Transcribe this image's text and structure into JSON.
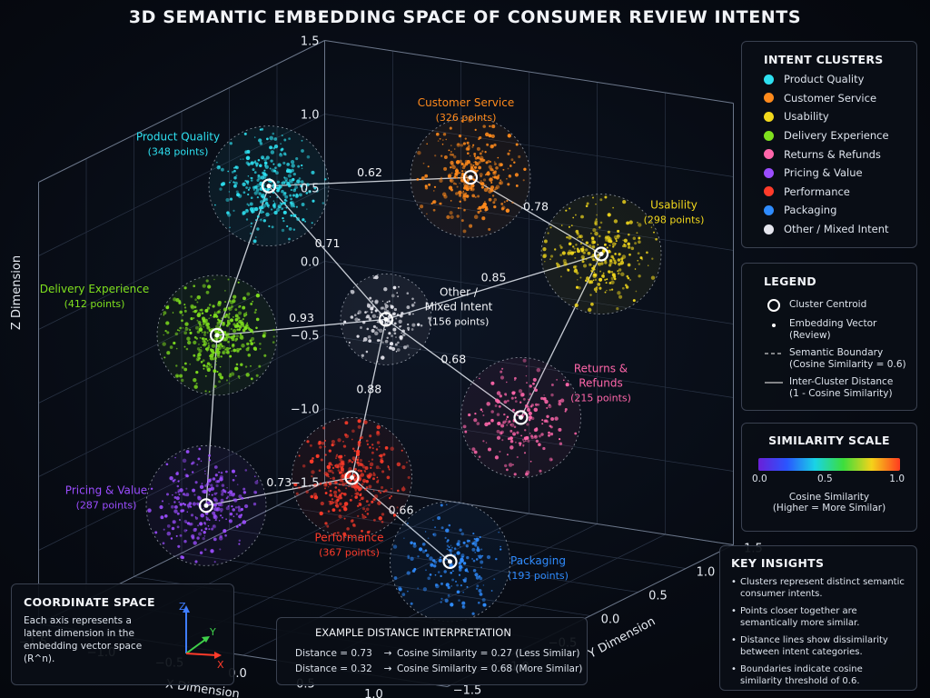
{
  "title": "3D SEMANTIC EMBEDDING SPACE OF CONSUMER REVIEW INTENTS",
  "chart_data": {
    "type": "scatter",
    "projection": "3d",
    "axes": {
      "x": {
        "label": "X Dimension",
        "ticks": [
          "−1.5",
          "−1.0",
          "−0.5",
          "0.0",
          "0.5",
          "1.0",
          "1.5"
        ],
        "range": [
          -1.5,
          1.5
        ]
      },
      "y": {
        "label": "Y Dimension",
        "ticks": [
          "−1.5",
          "−1.0",
          "−0.5",
          "0.0",
          "0.5",
          "1.0",
          "1.5"
        ],
        "range": [
          -1.5,
          1.5
        ]
      },
      "z": {
        "label": "Z Dimension",
        "ticks": [
          "1.5",
          "1.0",
          "0.5",
          "0.0",
          "−0.5",
          "−1.0",
          "−1.5"
        ],
        "range": [
          -1.5,
          1.5
        ]
      }
    },
    "clusters": [
      {
        "id": "pq",
        "name": "Product Quality",
        "label": "Product Quality",
        "count_label": "(348 points)",
        "points": 348,
        "color": "#2ee0f0",
        "x": -1.0,
        "y": 0.2,
        "z": 1.0
      },
      {
        "id": "cs",
        "name": "Customer Service",
        "label": "Customer Service",
        "count_label": "(326 points)",
        "points": 326,
        "color": "#ff8a1c",
        "x": 0.2,
        "y": 0.6,
        "z": 1.1
      },
      {
        "id": "us",
        "name": "Usability",
        "label": "Usability",
        "count_label": "(298 points)",
        "points": 298,
        "color": "#f2d81c",
        "x": 1.3,
        "y": 0.4,
        "z": 0.8
      },
      {
        "id": "de",
        "name": "Delivery Experience",
        "label": "Delivery Experience",
        "count_label": "(412 points)",
        "points": 412,
        "color": "#7fe01e",
        "x": -1.1,
        "y": -0.2,
        "z": 0.1
      },
      {
        "id": "om",
        "name": "Other / Mixed Intent",
        "label_lines": [
          "Other /",
          "Mixed Intent"
        ],
        "count_label": "(156 points)",
        "points": 156,
        "color": "#e6e6ee",
        "x": 0.0,
        "y": 0.0,
        "z": 0.3
      },
      {
        "id": "rr",
        "name": "Returns & Refunds",
        "label_lines": [
          "Returns &",
          "Refunds"
        ],
        "count_label": "(215 points)",
        "points": 215,
        "color": "#ff66aa",
        "x": 1.2,
        "y": -0.3,
        "z": -0.1
      },
      {
        "id": "pv",
        "name": "Pricing & Value",
        "label": "Pricing & Value",
        "count_label": "(287 points)",
        "points": 287,
        "color": "#9b4dff",
        "x": -0.9,
        "y": -0.6,
        "z": -0.9
      },
      {
        "id": "pf",
        "name": "Performance",
        "label": "Performance",
        "count_label": "(367 points)",
        "points": 367,
        "color": "#ff3b2a",
        "x": 0.1,
        "y": -0.5,
        "z": -0.6
      },
      {
        "id": "pk",
        "name": "Packaging",
        "label": "Packaging",
        "count_label": "(193 points)",
        "points": 193,
        "color": "#2f8cff",
        "x": 1.1,
        "y": -0.9,
        "z": -0.9
      }
    ],
    "distances": [
      {
        "from": "pq",
        "to": "cs",
        "value": "0.62"
      },
      {
        "from": "cs",
        "to": "us",
        "value": "0.78"
      },
      {
        "from": "pq",
        "to": "om",
        "value": "0.71"
      },
      {
        "from": "om",
        "to": "us",
        "value": "0.85"
      },
      {
        "from": "de",
        "to": "om",
        "value": "0.93"
      },
      {
        "from": "om",
        "to": "rr",
        "value": "0.68"
      },
      {
        "from": "om",
        "to": "pf",
        "value": "0.88"
      },
      {
        "from": "pv",
        "to": "pf",
        "value": "0.73"
      },
      {
        "from": "pf",
        "to": "pk",
        "value": "0.66"
      },
      {
        "from": "pq",
        "to": "de",
        "value": ""
      },
      {
        "from": "de",
        "to": "pv",
        "value": ""
      },
      {
        "from": "us",
        "to": "rr",
        "value": ""
      }
    ],
    "boundary_threshold": 0.6
  },
  "intent_clusters": {
    "title": "INTENT CLUSTERS",
    "items": [
      {
        "label": "Product Quality",
        "color": "#2ee0f0"
      },
      {
        "label": "Customer Service",
        "color": "#ff8a1c"
      },
      {
        "label": "Usability",
        "color": "#f2d81c"
      },
      {
        "label": "Delivery Experience",
        "color": "#7fe01e"
      },
      {
        "label": "Returns & Refunds",
        "color": "#ff66aa"
      },
      {
        "label": "Pricing & Value",
        "color": "#9b4dff"
      },
      {
        "label": "Performance",
        "color": "#ff3b2a"
      },
      {
        "label": "Packaging",
        "color": "#2f8cff"
      },
      {
        "label": "Other / Mixed Intent",
        "color": "#e6e6ee"
      }
    ]
  },
  "legend": {
    "title": "LEGEND",
    "centroid": "Cluster Centroid",
    "vector": "Embedding Vector (Review)",
    "boundary_1": "Semantic Boundary",
    "boundary_2": "(Cosine Similarity = 0.6)",
    "distance_1": "Inter-Cluster Distance",
    "distance_2": "(1 - Cosine Similarity)"
  },
  "similarity_scale": {
    "title": "SIMILARITY SCALE",
    "ticks": [
      "0.0",
      "0.5",
      "1.0"
    ],
    "caption_1": "Cosine Similarity",
    "caption_2": "(Higher = More Similar)",
    "range": [
      0,
      1
    ]
  },
  "key_insights": {
    "title": "KEY INSIGHTS",
    "items": [
      "Clusters represent distinct semantic consumer intents.",
      "Points closer together are semantically more similar.",
      "Distance lines show dissimilarity between intent categories.",
      "Boundaries indicate cosine similarity threshold of 0.6."
    ]
  },
  "coordinate_space": {
    "title": "COORDINATE SPACE",
    "text": "Each axis represents a latent dimension in the embedding vector space (R^n).",
    "axis_z": "Z",
    "axis_y": "Y",
    "axis_x": "X"
  },
  "example": {
    "title": "EXAMPLE DISTANCE INTERPRETATION",
    "rows": [
      {
        "distance": "Distance = 0.73",
        "arrow": "→",
        "similarity": "Cosine Similarity = 0.27 (Less Similar)"
      },
      {
        "distance": "Distance = 0.32",
        "arrow": "→",
        "similarity": "Cosine Similarity = 0.68 (More Similar)"
      }
    ]
  }
}
